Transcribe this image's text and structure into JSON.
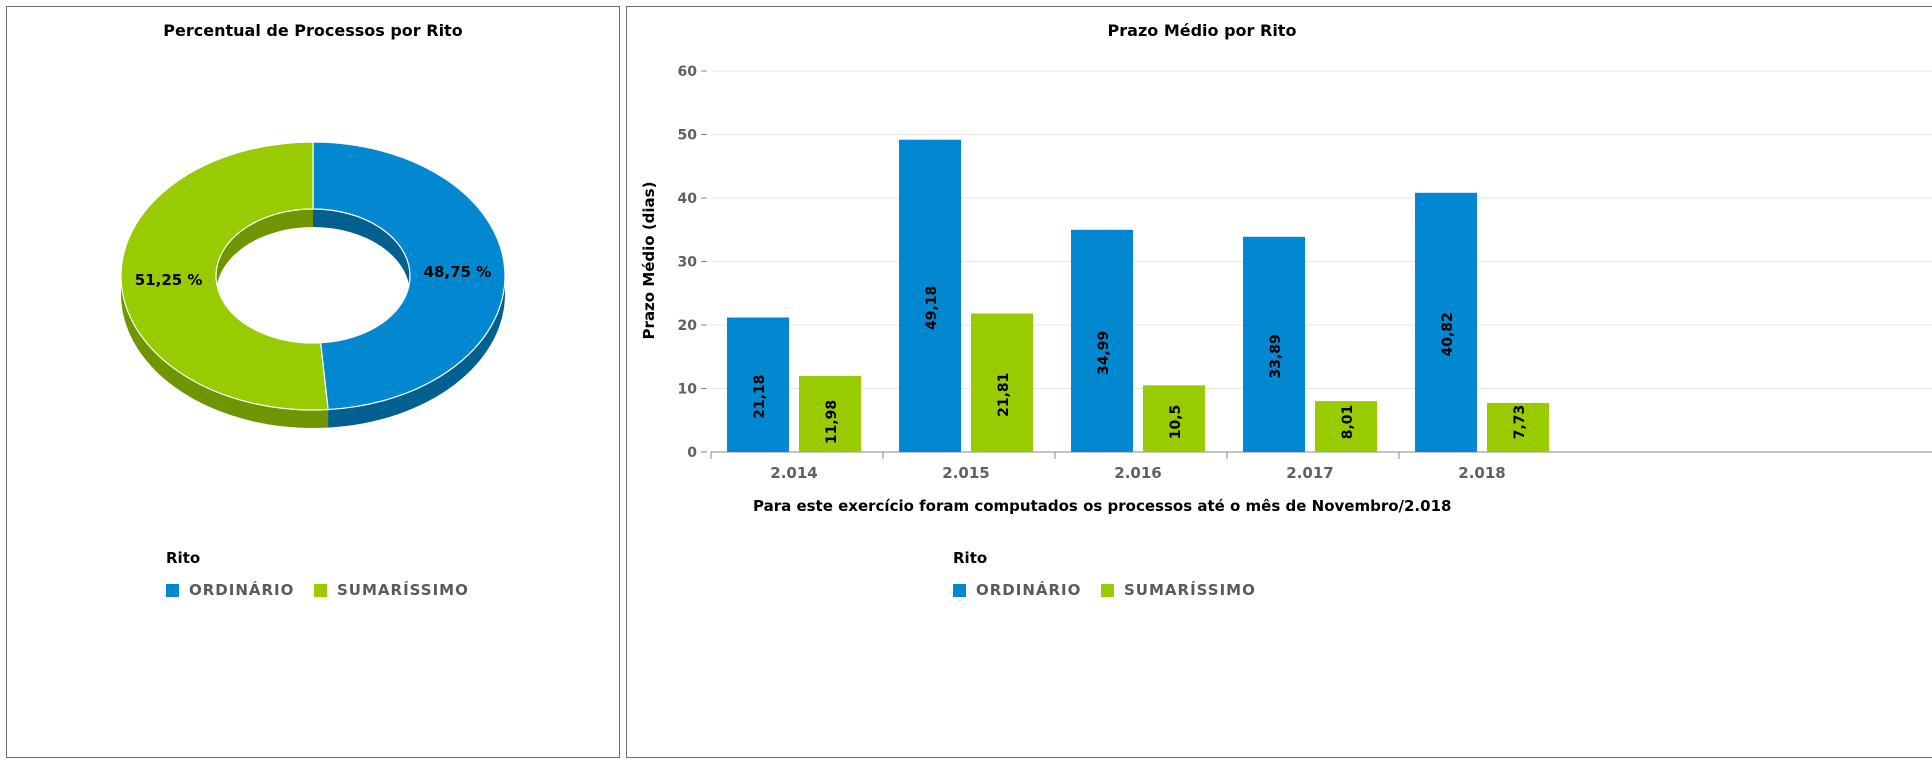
{
  "colors": {
    "ordinario": "#0288d1",
    "ordinario_dark": "#026090",
    "sumarissimo": "#99cc00",
    "sumarissimo_dark": "#6f9600",
    "grid": "#e6e6e6",
    "axis": "#888888"
  },
  "legend": {
    "title": "Rito",
    "items": [
      {
        "label": "ORDINÁRIO",
        "color": "#0288d1"
      },
      {
        "label": "SUMARÍSSIMO",
        "color": "#99cc00"
      }
    ]
  },
  "chart_data": [
    {
      "type": "pie",
      "title": "Percentual de Processos por Rito",
      "slices": [
        {
          "name": "ORDINÁRIO",
          "value": 48.75,
          "label": "48,75 %"
        },
        {
          "name": "SUMARÍSSIMO",
          "value": 51.25,
          "label": "51,25 %"
        }
      ]
    },
    {
      "type": "bar",
      "title": "Prazo Médio por Rito",
      "ylabel": "Prazo Médio (dias)",
      "xlabel": "Para este exercício foram computados os processos até o mês de Novembro/2.018",
      "ylim": [
        0,
        60
      ],
      "yticks": [
        "0",
        "10",
        "20",
        "30",
        "40",
        "50",
        "60"
      ],
      "categories": [
        "2.014",
        "2.015",
        "2.016",
        "2.017",
        "2.018"
      ],
      "series": [
        {
          "name": "ORDINÁRIO",
          "values": [
            21.18,
            49.18,
            34.99,
            33.89,
            40.82
          ],
          "labels": [
            "21,18",
            "49,18",
            "34,99",
            "33,89",
            "40,82"
          ]
        },
        {
          "name": "SUMARÍSSIMO",
          "values": [
            11.98,
            21.81,
            10.5,
            8.01,
            7.73
          ],
          "labels": [
            "11,98",
            "21,81",
            "10,5",
            "8,01",
            "7,73"
          ]
        }
      ]
    }
  ]
}
